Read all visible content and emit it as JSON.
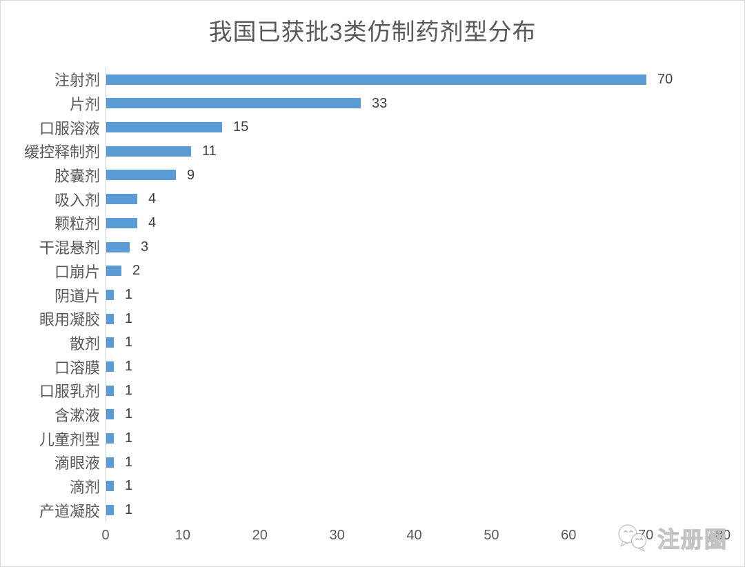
{
  "chart_data": {
    "type": "bar",
    "orientation": "horizontal",
    "title": "我国已获批3类仿制药剂型分布",
    "categories": [
      "注射剂",
      "片剂",
      "口服溶液",
      "缓控释制剂",
      "胶囊剂",
      "吸入剂",
      "颗粒剂",
      "干混悬剂",
      "口崩片",
      "阴道片",
      "眼用凝胶",
      "散剂",
      "口溶膜",
      "口服乳剂",
      "含漱液",
      "儿童剂型",
      "滴眼液",
      "滴剂",
      "产道凝胶"
    ],
    "values": [
      70,
      33,
      15,
      11,
      9,
      4,
      4,
      3,
      2,
      1,
      1,
      1,
      1,
      1,
      1,
      1,
      1,
      1,
      1
    ],
    "xlabel": "",
    "ylabel": "",
    "xlim": [
      0,
      80
    ],
    "x_ticks": [
      0,
      10,
      20,
      30,
      40,
      50,
      60,
      70,
      80
    ],
    "grid": false,
    "legend": false,
    "data_labels": true,
    "bar_color": "#5b9bd5"
  },
  "colors": {
    "title": "#595959",
    "category_label": "#595959",
    "value_label": "#3f3f3f",
    "tick_label": "#595959",
    "axis_line": "#cfcfcf",
    "page_border": "#d6d6d6"
  },
  "watermark": {
    "text": "注册圈",
    "icon": "wechat-bubbles-icon"
  }
}
